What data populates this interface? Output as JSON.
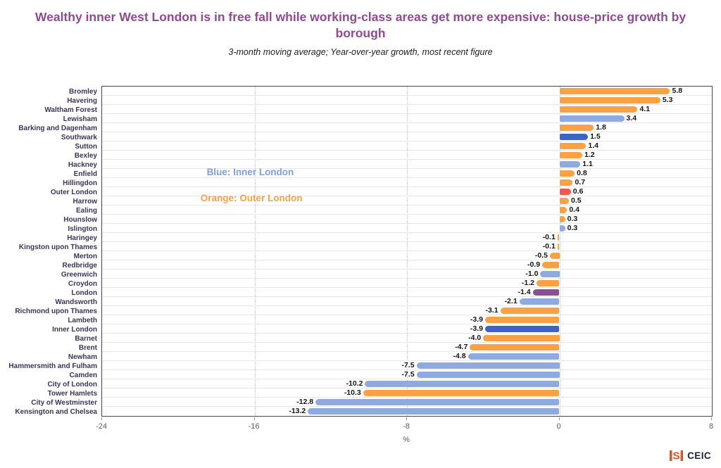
{
  "header": {
    "title": "Wealthy inner West London is in free fall while working-class areas get more expensive: house-price growth by borough",
    "subtitle": "3-month moving average; Year-over-year growth, most recent figure"
  },
  "chart_data": {
    "type": "bar",
    "orientation": "horizontal",
    "title": "Wealthy inner West London is in free fall while working-class areas get more expensive: house-price growth by borough",
    "subtitle": "3-month moving average; Year-over-year growth, most recent figure",
    "xlabel": "%",
    "xlim": [
      -24,
      8
    ],
    "xticks": [
      -24,
      -16,
      -8,
      0,
      8
    ],
    "grid": {
      "horizontal": true,
      "vertical_dotted_ticks": [
        -16,
        -8,
        0
      ]
    },
    "palette": {
      "outer": "#F9A145",
      "inner": "#8FA9E1",
      "innerDark": "#3C63C5",
      "outerAggregate": "#EF594E",
      "londonAggregate": "#8E4E94"
    },
    "annotations": [
      {
        "id": "inner",
        "text": "Blue: Inner London",
        "color": "#7E9EDE"
      },
      {
        "id": "outer",
        "text": "Orange: Outer London",
        "color": "#F9A243"
      }
    ],
    "bars": [
      {
        "label": "Bromley",
        "value": 5.8,
        "color": "outer"
      },
      {
        "label": "Havering",
        "value": 5.3,
        "color": "outer"
      },
      {
        "label": "Waltham Forest",
        "value": 4.1,
        "color": "outer"
      },
      {
        "label": "Lewisham",
        "value": 3.4,
        "color": "inner"
      },
      {
        "label": "Barking and Dagenham",
        "value": 1.8,
        "color": "outer"
      },
      {
        "label": "Southwark",
        "value": 1.5,
        "color": "innerDark"
      },
      {
        "label": "Sutton",
        "value": 1.4,
        "color": "outer"
      },
      {
        "label": "Bexley",
        "value": 1.2,
        "color": "outer"
      },
      {
        "label": "Hackney",
        "value": 1.1,
        "color": "inner"
      },
      {
        "label": "Enfield",
        "value": 0.8,
        "color": "outer"
      },
      {
        "label": "Hillingdon",
        "value": 0.7,
        "color": "outer"
      },
      {
        "label": "Outer London",
        "value": 0.6,
        "color": "outerAggregate"
      },
      {
        "label": "Harrow",
        "value": 0.5,
        "color": "outer"
      },
      {
        "label": "Ealing",
        "value": 0.4,
        "color": "outer"
      },
      {
        "label": "Hounslow",
        "value": 0.3,
        "color": "outer"
      },
      {
        "label": "Islington",
        "value": 0.3,
        "color": "inner"
      },
      {
        "label": "Haringey",
        "value": -0.1,
        "color": "outer"
      },
      {
        "label": "Kingston upon Thames",
        "value": -0.1,
        "color": "outer"
      },
      {
        "label": "Merton",
        "value": -0.5,
        "color": "outer"
      },
      {
        "label": "Redbridge",
        "value": -0.9,
        "color": "outer"
      },
      {
        "label": "Greenwich",
        "value": -1.0,
        "color": "inner"
      },
      {
        "label": "Croydon",
        "value": -1.2,
        "color": "outer"
      },
      {
        "label": "London",
        "value": -1.4,
        "color": "londonAggregate"
      },
      {
        "label": "Wandsworth",
        "value": -2.1,
        "color": "inner"
      },
      {
        "label": "Richmond upon Thames",
        "value": -3.1,
        "color": "outer"
      },
      {
        "label": "Lambeth",
        "value": -3.9,
        "color": "outer"
      },
      {
        "label": "Inner London",
        "value": -3.9,
        "color": "innerDark"
      },
      {
        "label": "Barnet",
        "value": -4.0,
        "color": "outer"
      },
      {
        "label": "Brent",
        "value": -4.7,
        "color": "outer"
      },
      {
        "label": "Newham",
        "value": -4.8,
        "color": "inner"
      },
      {
        "label": "Hammersmith and Fulham",
        "value": -7.5,
        "color": "inner"
      },
      {
        "label": "Camden",
        "value": -7.5,
        "color": "inner"
      },
      {
        "label": "City of London",
        "value": -10.2,
        "color": "inner"
      },
      {
        "label": "Tower Hamlets",
        "value": -10.3,
        "color": "outer"
      },
      {
        "label": "City of Westminster",
        "value": -12.8,
        "color": "inner"
      },
      {
        "label": "Kensington and Chelsea",
        "value": -13.2,
        "color": "inner"
      }
    ]
  },
  "footer": {
    "brand": "CEIC",
    "icon": "isi-mark",
    "icon_letter": "S",
    "icon_color": "#E84E1F"
  }
}
